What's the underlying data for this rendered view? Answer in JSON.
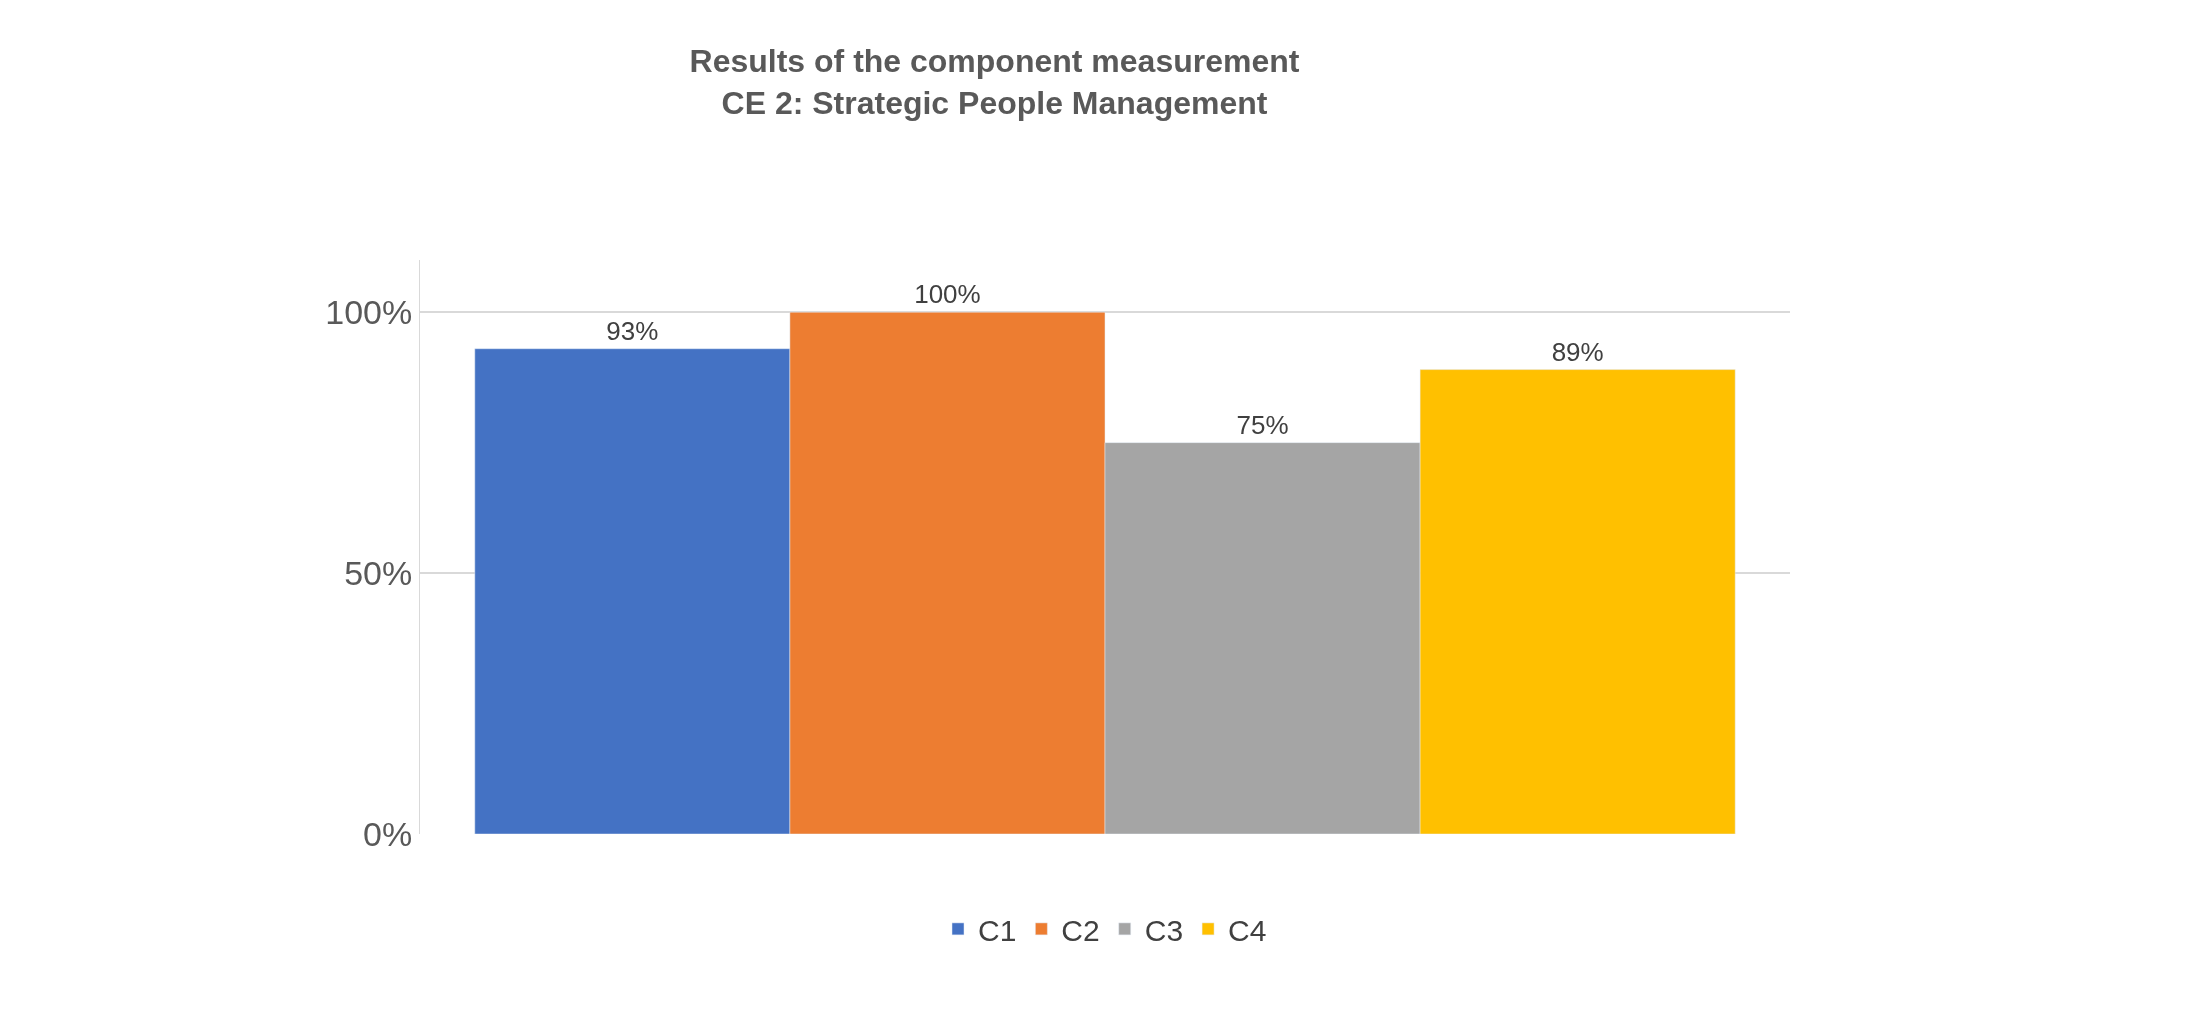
{
  "chart_data": {
    "type": "bar",
    "title": "Results of the component measurement",
    "subtitle": "CE 2: Strategic People Management",
    "categories": [
      null
    ],
    "series": [
      {
        "name": "C1",
        "color": "#4472c4",
        "values": [
          93
        ],
        "value_labels": [
          "93%"
        ]
      },
      {
        "name": "C2",
        "color": "#ed7d31",
        "values": [
          100
        ],
        "value_labels": [
          "100%"
        ]
      },
      {
        "name": "C3",
        "color": "#a5a5a5",
        "values": [
          75
        ],
        "value_labels": [
          "75%"
        ]
      },
      {
        "name": "C4",
        "color": "#ffc000",
        "values": [
          89
        ],
        "value_labels": [
          "89%"
        ]
      }
    ],
    "ylim": [
      0,
      110
    ],
    "yticks": [
      {
        "value": 0,
        "label": "0%"
      },
      {
        "value": 50,
        "label": "50%"
      },
      {
        "value": 100,
        "label": "100%"
      }
    ],
    "grid": "y",
    "legend": "bottom",
    "tick_labels": "y"
  }
}
